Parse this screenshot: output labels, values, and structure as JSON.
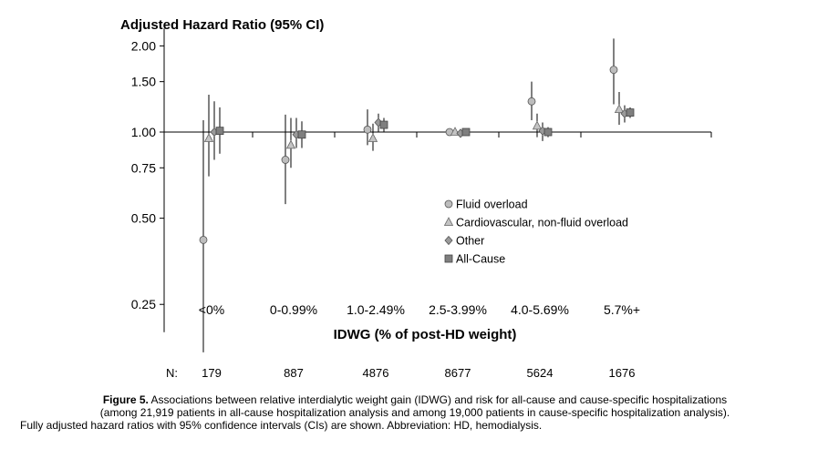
{
  "chart_data": {
    "type": "scatter",
    "title": "Adjusted Hazard Ratio (95% CI)",
    "xlabel": "IDWG (% of post-HD weight)",
    "ylabel": "",
    "y_scale": "log",
    "ylim": [
      0.2,
      2.3
    ],
    "y_ticks": [
      {
        "value": 0.25,
        "label": "0.25"
      },
      {
        "value": 0.5,
        "label": "0.50"
      },
      {
        "value": 0.75,
        "label": "0.75"
      },
      {
        "value": 1.0,
        "label": "1.00"
      },
      {
        "value": 1.5,
        "label": "1.50"
      },
      {
        "value": 2.0,
        "label": "2.00"
      }
    ],
    "reference_line": 1.0,
    "categories": [
      "<0%",
      "0-0.99%",
      "1.0-2.49%",
      "2.5-3.99%",
      "4.0-5.69%",
      "5.7%+"
    ],
    "series": [
      {
        "name": "Fluid overload",
        "marker": "circle",
        "color": "#bdbdbd",
        "values": [
          0.42,
          0.8,
          1.02,
          1.0,
          1.28,
          1.65
        ],
        "ci_low": [
          0.17,
          0.56,
          0.9,
          0.98,
          1.1,
          1.25
        ],
        "ci_high": [
          1.1,
          1.15,
          1.2,
          1.02,
          1.5,
          2.12
        ]
      },
      {
        "name": "Cardiovascular, non-fluid overload",
        "marker": "triangle",
        "color": "#c4c4c4",
        "values": [
          0.95,
          0.9,
          0.95,
          1.0,
          1.05,
          1.2
        ],
        "ci_low": [
          0.7,
          0.75,
          0.86,
          0.98,
          0.96,
          1.06
        ],
        "ci_high": [
          1.35,
          1.12,
          1.07,
          1.02,
          1.16,
          1.38
        ]
      },
      {
        "name": "Other",
        "marker": "diamond",
        "color": "#9a9a9a",
        "values": [
          1.0,
          0.98,
          1.08,
          0.99,
          1.01,
          1.16
        ],
        "ci_low": [
          0.8,
          0.88,
          1.0,
          0.97,
          0.93,
          1.08
        ],
        "ci_high": [
          1.28,
          1.12,
          1.16,
          1.01,
          1.08,
          1.24
        ]
      },
      {
        "name": "All-Cause",
        "marker": "square",
        "color": "#7f7f7f",
        "values": [
          1.01,
          0.98,
          1.06,
          1.0,
          1.0,
          1.17
        ],
        "ci_low": [
          0.84,
          0.88,
          1.0,
          0.99,
          0.96,
          1.12
        ],
        "ci_high": [
          1.22,
          1.09,
          1.12,
          1.01,
          1.04,
          1.22
        ]
      }
    ],
    "legend_position": "center-right",
    "n_label": "N:",
    "n_values": [
      "179",
      "887",
      "4876",
      "8677",
      "5624",
      "1676"
    ]
  },
  "caption": {
    "lead": "Figure 5.",
    "line1": "Associations between relative interdialytic weight gain (IDWG) and risk for all-cause and cause-specific hospitalizations",
    "line2": "(among 21,919 patients in all-cause hospitalization analysis and among 19,000 patients in cause-specific hospitalization analysis).",
    "line3": "Fully adjusted hazard ratios with 95% confidence intervals (CIs) are shown. Abbreviation: HD, hemodialysis."
  }
}
